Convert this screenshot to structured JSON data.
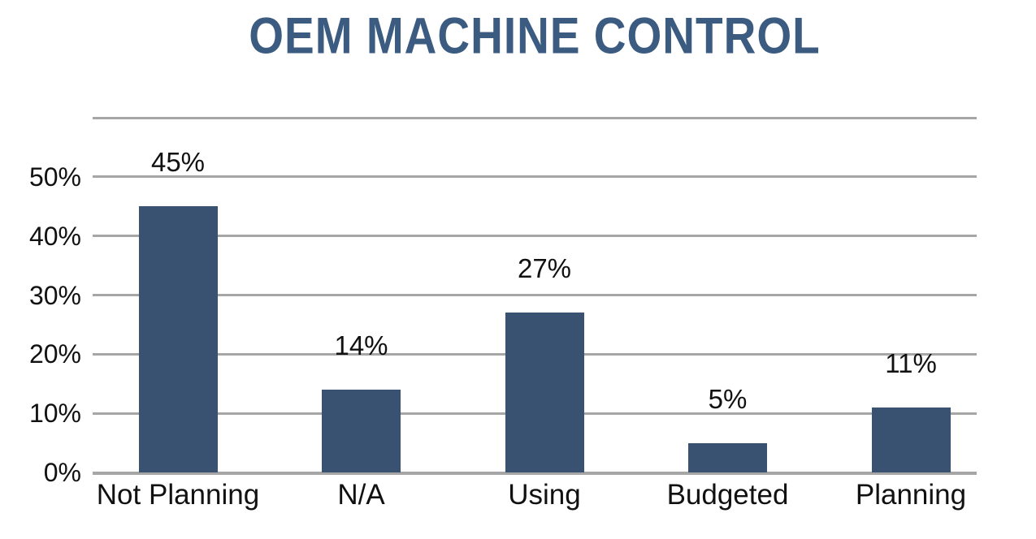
{
  "chart_data": {
    "type": "bar",
    "title": "OEM MACHINE CONTROL",
    "categories": [
      "Not Planning",
      "N/A",
      "Using",
      "Budgeted",
      "Planning"
    ],
    "values": [
      45,
      14,
      27,
      5,
      11
    ],
    "data_labels": [
      "45%",
      "14%",
      "27%",
      "5%",
      "11%"
    ],
    "xlabel": "",
    "ylabel": "",
    "ylim": [
      0,
      60
    ],
    "yticks": [
      {
        "value": 0,
        "label": "0%"
      },
      {
        "value": 10,
        "label": "10%"
      },
      {
        "value": 20,
        "label": "20%"
      },
      {
        "value": 30,
        "label": "30%"
      },
      {
        "value": 40,
        "label": "40%"
      },
      {
        "value": 50,
        "label": "50%"
      }
    ],
    "gridline_values": [
      0,
      10,
      20,
      30,
      40,
      50,
      60
    ],
    "grid": true,
    "legend": false,
    "colors": {
      "bar": "#3a5271",
      "title": "#3b5b80",
      "gridline": "#a6a6a6",
      "axis_line": "#a6a6a6",
      "text": "#111111",
      "background": "#ffffff"
    }
  }
}
